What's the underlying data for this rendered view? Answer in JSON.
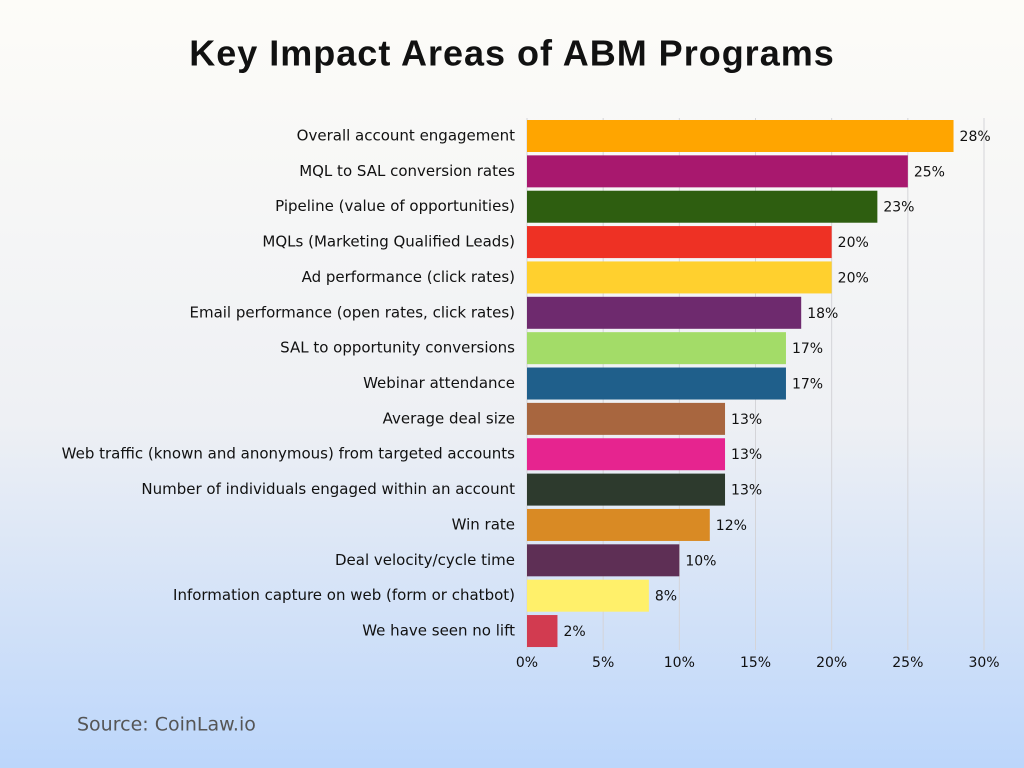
{
  "chart_data": {
    "type": "bar",
    "orientation": "horizontal",
    "title": "Key Impact Areas of ABM Programs",
    "source": "Source: CoinLaw.io",
    "categories": [
      "Overall account engagement",
      "MQL to SAL conversion rates",
      "Pipeline (value of opportunities)",
      "MQLs (Marketing Qualified Leads)",
      "Ad performance (click rates)",
      "Email performance (open rates, click rates)",
      "SAL to opportunity conversions",
      "Webinar attendance",
      "Average deal size",
      "Web traffic (known and anonymous) from targeted accounts",
      "Number of individuals engaged within an account",
      "Win rate",
      "Deal velocity/cycle time",
      "Information capture on web (form or chatbot)",
      "We have seen no lift"
    ],
    "values": [
      28,
      25,
      23,
      20,
      20,
      18,
      17,
      17,
      13,
      13,
      13,
      12,
      10,
      8,
      2
    ],
    "value_labels": [
      "28%",
      "25%",
      "23%",
      "20%",
      "20%",
      "18%",
      "17%",
      "17%",
      "13%",
      "13%",
      "13%",
      "12%",
      "10%",
      "8%",
      "2%"
    ],
    "colors": [
      "#ffa500",
      "#a8186e",
      "#2e5e10",
      "#ee3124",
      "#ffd02e",
      "#6e2a6e",
      "#a3dc68",
      "#1f5f8b",
      "#a8663f",
      "#e6248f",
      "#2d3a2d",
      "#d98a24",
      "#5e2f55",
      "#fff06a",
      "#d23b50"
    ],
    "xlim": [
      0,
      30
    ],
    "xticks": [
      {
        "value": 0,
        "label": "0%"
      },
      {
        "value": 5,
        "label": "5%"
      },
      {
        "value": 10,
        "label": "10%"
      },
      {
        "value": 15,
        "label": "15%"
      },
      {
        "value": 20,
        "label": "20%"
      },
      {
        "value": 25,
        "label": "25%"
      },
      {
        "value": 30,
        "label": "30%"
      }
    ],
    "grid": true
  }
}
